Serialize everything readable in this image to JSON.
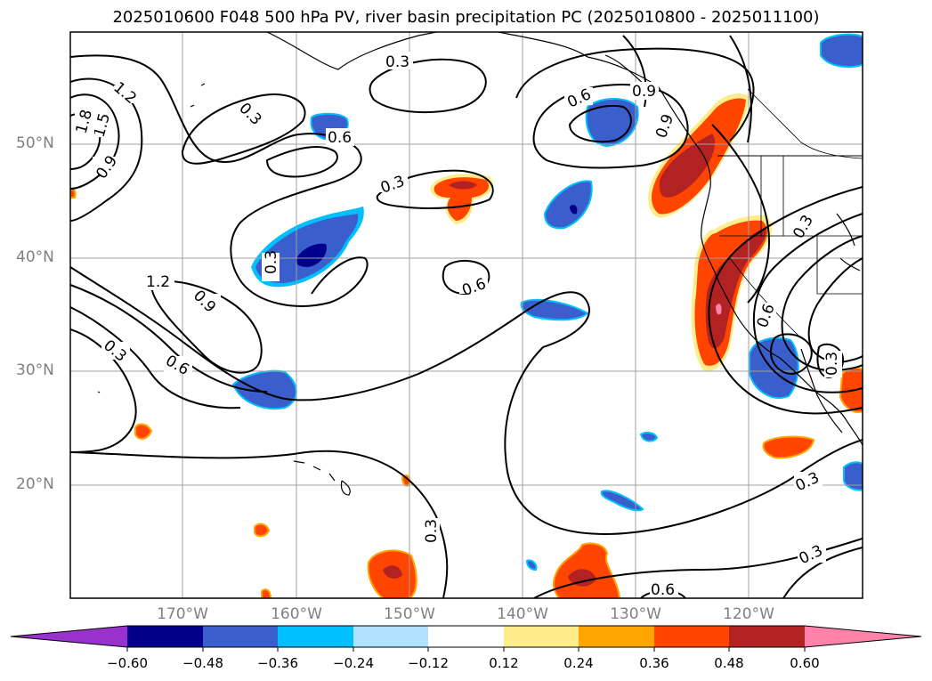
{
  "title": "2025010600 F048 500 hPa PV, river basin precipitation PC (2025010800 - 2025011100)",
  "map": {
    "lat_labels": [
      "50°N",
      "40°N",
      "30°N",
      "20°N"
    ],
    "lon_labels": [
      "170°W",
      "160°W",
      "150°W",
      "140°W",
      "130°W",
      "120°W"
    ],
    "gridlines": true
  },
  "contour_labels": [
    "0.3",
    "0.3",
    "0.3",
    "0.3",
    "0.3",
    "0.3",
    "0.3",
    "0.3",
    "0.3",
    "0.3",
    "0.6",
    "0.6",
    "0.6",
    "0.6",
    "0.6",
    "0.6",
    "0.9",
    "0.9",
    "0.9",
    "0.9",
    "1.2",
    "1.2",
    "1.5",
    "1.8"
  ],
  "colorbar": {
    "ticks": [
      "−0.60",
      "−0.48",
      "−0.36",
      "−0.24",
      "−0.12",
      "0.12",
      "0.24",
      "0.36",
      "0.48",
      "0.60"
    ],
    "colors": [
      "#9932cc",
      "#00008b",
      "#3a5fcd",
      "#00bfff",
      "#b0e2ff",
      "#ffffff",
      "#ffec8b",
      "#ffa500",
      "#ff4500",
      "#b22222",
      "#ff82ab"
    ],
    "extend": "both"
  }
}
